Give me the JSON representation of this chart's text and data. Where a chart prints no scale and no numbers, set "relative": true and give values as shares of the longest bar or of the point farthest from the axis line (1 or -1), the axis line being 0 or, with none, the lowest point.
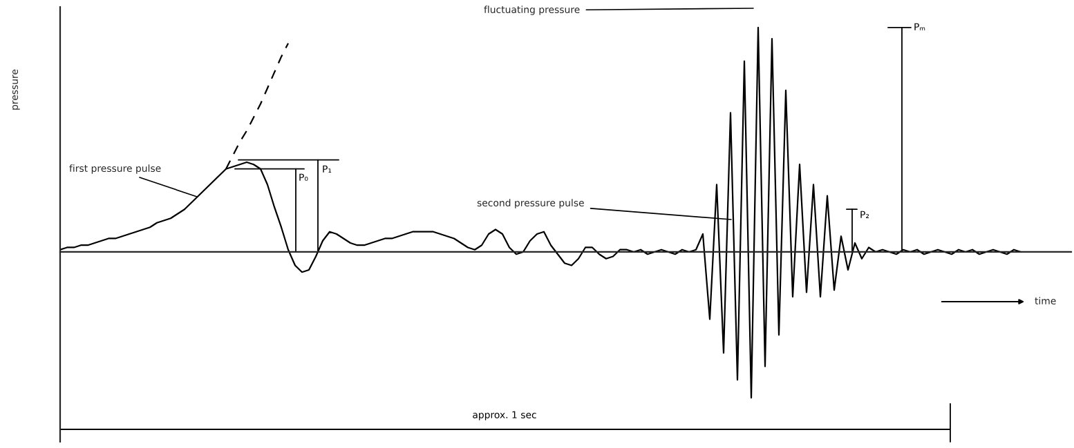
{
  "chart_data": {
    "type": "line",
    "relative": true,
    "xlabel": "time",
    "ylabel": "pressure",
    "categories": [
      null,
      null,
      null,
      null,
      null,
      null,
      null,
      null,
      null,
      null,
      null,
      null,
      null,
      null,
      null,
      null,
      null,
      null,
      null,
      null,
      null,
      null,
      null,
      null,
      null,
      null,
      null,
      null,
      null,
      null,
      null,
      null,
      null,
      null,
      null,
      null,
      null,
      null,
      null,
      null,
      null,
      null,
      null,
      null,
      null,
      null,
      null,
      null,
      null,
      null,
      null,
      null,
      null,
      null,
      null,
      null,
      null,
      null,
      null,
      null,
      null,
      null,
      null,
      null,
      null,
      null,
      null,
      null,
      null,
      null,
      null,
      null,
      null,
      null,
      null,
      null,
      null,
      null,
      null,
      null,
      null,
      null,
      null,
      null,
      null,
      null,
      null,
      null,
      null,
      null,
      null,
      null,
      null,
      null,
      null,
      null,
      null,
      null,
      null,
      null,
      null,
      null,
      null,
      null,
      null,
      null,
      null,
      null,
      null,
      null,
      null,
      null,
      null,
      null,
      null,
      null,
      null,
      null,
      null,
      null,
      null,
      null,
      null,
      null,
      null,
      null,
      null,
      null,
      null,
      null,
      null,
      null,
      null,
      null,
      null,
      null,
      null,
      null,
      null,
      null
    ],
    "series": [
      {
        "color": "#000000",
        "line_style": "solid",
        "values": [
          0.01,
          0.02,
          0.02,
          0.03,
          0.03,
          0.04,
          0.05,
          0.06,
          0.06,
          0.07,
          0.08,
          0.09,
          0.1,
          0.11,
          0.13,
          0.14,
          0.15,
          0.17,
          0.19,
          0.22,
          0.25,
          0.28,
          0.31,
          0.34,
          0.37,
          0.38,
          0.39,
          0.4,
          0.39,
          0.37,
          0.3,
          0.2,
          0.11,
          0.01,
          -0.06,
          -0.09,
          -0.08,
          -0.02,
          0.05,
          0.09,
          0.08,
          0.06,
          0.04,
          0.03,
          0.03,
          0.04,
          0.05,
          0.06,
          0.06,
          0.07,
          0.08,
          0.09,
          0.09,
          0.09,
          0.09,
          0.08,
          0.07,
          0.06,
          0.04,
          0.02,
          0.01,
          0.03,
          0.08,
          0.1,
          0.08,
          0.02,
          -0.01,
          0,
          0.05,
          0.08,
          0.09,
          0.03,
          -0.01,
          -0.05,
          -0.06,
          -0.03,
          0.02,
          0.02,
          -0.01,
          -0.03,
          -0.02,
          0.01,
          0.01,
          0,
          0.01,
          -0.01,
          0,
          0.01,
          0,
          -0.01,
          0.01,
          0,
          0.01,
          0.08,
          -0.3,
          0.3,
          -0.45,
          0.62,
          -0.57,
          0.85,
          -0.65,
          1.0,
          -0.51,
          0.95,
          -0.37,
          0.72,
          -0.2,
          0.39,
          -0.18,
          0.3,
          -0.2,
          0.25,
          -0.17,
          0.07,
          -0.08,
          0.04,
          -0.03,
          0.02,
          0,
          0.01,
          0,
          -0.01,
          0.01,
          0,
          0.01,
          -0.01,
          0,
          0.01,
          0,
          -0.01,
          0.01,
          0,
          0.01,
          -0.01,
          0,
          0.01,
          0,
          -0.01,
          0.01,
          0
        ]
      },
      {
        "color": "#000000",
        "line_style": "dashed",
        "values": [
          null,
          null,
          null,
          null,
          null,
          null,
          null,
          null,
          null,
          null,
          null,
          null,
          null,
          null,
          null,
          null,
          null,
          null,
          null,
          null,
          null,
          null,
          null,
          null,
          0.37,
          0.43,
          0.49,
          0.54,
          0.6,
          0.66,
          0.73,
          0.8,
          0.87,
          0.93,
          null,
          null,
          null,
          null,
          null,
          null,
          null,
          null,
          null,
          null,
          null,
          null,
          null,
          null,
          null,
          null,
          null,
          null,
          null,
          null,
          null,
          null,
          null,
          null,
          null,
          null,
          null,
          null,
          null,
          null,
          null,
          null,
          null,
          null,
          null,
          null,
          null,
          null,
          null,
          null,
          null,
          null,
          null,
          null,
          null,
          null,
          null,
          null,
          null,
          null,
          null,
          null,
          null,
          null,
          null,
          null,
          null,
          null,
          null,
          null,
          null,
          null,
          null,
          null,
          null,
          null,
          null,
          null,
          null,
          null,
          null,
          null,
          null,
          null,
          null,
          null,
          null,
          null,
          null,
          null,
          null,
          null,
          null,
          null,
          null,
          null,
          null,
          null,
          null,
          null,
          null,
          null,
          null,
          null,
          null,
          null,
          null,
          null,
          null,
          null,
          null,
          null,
          null,
          null,
          null,
          null
        ]
      }
    ],
    "ref_lines": [
      {
        "axis": "y",
        "value": 0.37,
        "label": "P₀"
      },
      {
        "axis": "y",
        "value": 0.41,
        "label": "P₁"
      },
      {
        "axis": "y",
        "value": 0.19,
        "label": "P₂"
      },
      {
        "axis": "y",
        "value": 1.0,
        "label": "Pₘ"
      }
    ],
    "annotations": [
      "first pressure pulse",
      "fluctuating pressure",
      "second pressure pulse",
      "approx. 1 sec"
    ]
  }
}
